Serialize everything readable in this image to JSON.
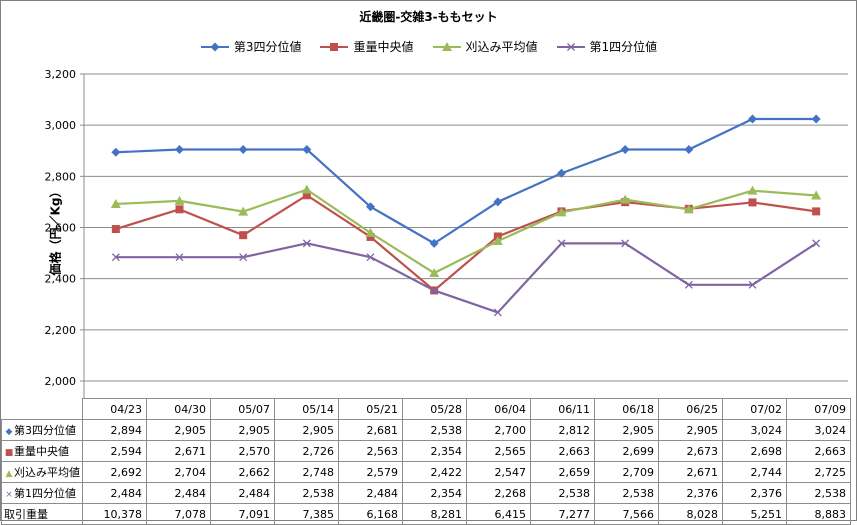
{
  "chart_data": {
    "type": "line",
    "title": "近畿圏-交雑3-ももセット",
    "ylabel": "価格（円／Kg）",
    "ylim": [
      2000,
      3200
    ],
    "ytick_labels": [
      "2,000",
      "2,200",
      "2,400",
      "2,600",
      "2,800",
      "3,000",
      "3,200"
    ],
    "grid": true,
    "legend_position": "top",
    "categories": [
      "04/23",
      "04/30",
      "05/07",
      "05/14",
      "05/21",
      "05/28",
      "06/04",
      "06/11",
      "06/18",
      "06/25",
      "07/02",
      "07/09"
    ],
    "series": [
      {
        "name": "第3四分位値",
        "color": "#4472c4",
        "marker": "diamond",
        "values": [
          2894,
          2905,
          2905,
          2905,
          2681,
          2538,
          2700,
          2812,
          2905,
          2905,
          3024,
          3024
        ],
        "labels": [
          "2,894",
          "2,905",
          "2,905",
          "2,905",
          "2,681",
          "2,538",
          "2,700",
          "2,812",
          "2,905",
          "2,905",
          "3,024",
          "3,024"
        ]
      },
      {
        "name": "重量中央値",
        "color": "#c0504d",
        "marker": "square",
        "values": [
          2594,
          2671,
          2570,
          2726,
          2563,
          2354,
          2565,
          2663,
          2699,
          2673,
          2698,
          2663
        ],
        "labels": [
          "2,594",
          "2,671",
          "2,570",
          "2,726",
          "2,563",
          "2,354",
          "2,565",
          "2,663",
          "2,699",
          "2,673",
          "2,698",
          "2,663"
        ]
      },
      {
        "name": "刈込み平均値",
        "color": "#9bbb59",
        "marker": "triangle",
        "values": [
          2692,
          2704,
          2662,
          2748,
          2579,
          2422,
          2547,
          2659,
          2709,
          2671,
          2744,
          2725
        ],
        "labels": [
          "2,692",
          "2,704",
          "2,662",
          "2,748",
          "2,579",
          "2,422",
          "2,547",
          "2,659",
          "2,709",
          "2,671",
          "2,744",
          "2,725"
        ]
      },
      {
        "name": "第1四分位値",
        "color": "#8064a2",
        "marker": "x",
        "values": [
          2484,
          2484,
          2484,
          2538,
          2484,
          2354,
          2268,
          2538,
          2538,
          2376,
          2376,
          2538
        ],
        "labels": [
          "2,484",
          "2,484",
          "2,484",
          "2,538",
          "2,484",
          "2,354",
          "2,268",
          "2,538",
          "2,538",
          "2,376",
          "2,376",
          "2,538"
        ]
      }
    ],
    "table_rows": [
      {
        "name": "取引重量",
        "values": [
          10378,
          7078,
          7091,
          7385,
          6168,
          8281,
          6415,
          7277,
          7566,
          8028,
          5251,
          8883
        ],
        "labels": [
          "10,378",
          "7,078",
          "7,091",
          "7,385",
          "6,168",
          "8,281",
          "6,415",
          "7,277",
          "7,566",
          "8,028",
          "5,251",
          "8,883"
        ]
      }
    ]
  }
}
